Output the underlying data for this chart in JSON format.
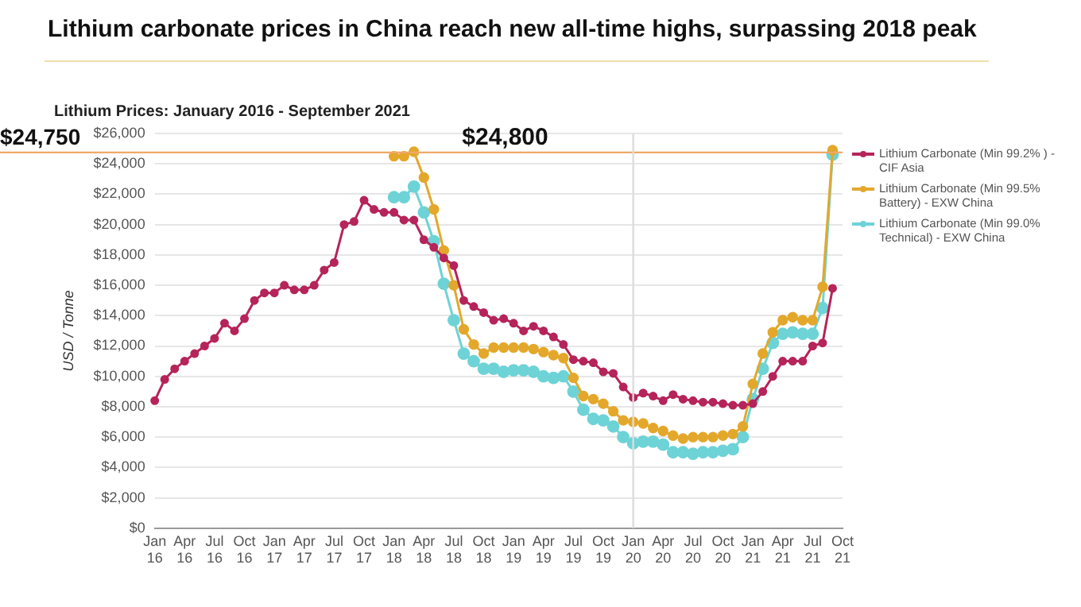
{
  "chart_data": {
    "type": "line",
    "title": "Lithium carbonate prices in China reach new all-time highs, surpassing 2018 peak",
    "subtitle": "Lithium Prices: January 2016 - September 2021",
    "ylabel": "USD / Tonne",
    "categories": [
      "Jan 16",
      null,
      null,
      "Apr 16",
      null,
      null,
      "Jul 16",
      null,
      null,
      "Oct 16",
      null,
      null,
      "Jan 17",
      null,
      null,
      "Apr 17",
      null,
      null,
      "Jul 17",
      null,
      null,
      "Oct 17",
      null,
      null,
      "Jan 18",
      null,
      null,
      "Apr 18",
      null,
      null,
      "Jul 18",
      null,
      null,
      "Oct 18",
      null,
      null,
      "Jan 19",
      null,
      null,
      "Apr 19",
      null,
      null,
      "Jul 19",
      null,
      null,
      "Oct 19",
      null,
      null,
      "Jan 20",
      null,
      null,
      "Apr 20",
      null,
      null,
      "Jul 20",
      null,
      null,
      "Oct 20",
      null,
      null,
      "Jan 21",
      null,
      null,
      "Apr 21",
      null,
      null,
      "Jul 21",
      null,
      null,
      "Oct 21"
    ],
    "series": [
      {
        "name": "Lithium Carbonate (Min 99.2% ) - CIF Asia",
        "color": "#b5245a",
        "values": [
          8400,
          9800,
          10500,
          11000,
          11500,
          12000,
          12500,
          13500,
          13000,
          13800,
          15000,
          15500,
          15500,
          16000,
          15700,
          15700,
          16000,
          17000,
          17500,
          20000,
          20200,
          21600,
          21000,
          20800,
          20800,
          20300,
          20300,
          19000,
          18500,
          17800,
          17300,
          15000,
          14600,
          14200,
          13700,
          13800,
          13500,
          13000,
          13300,
          13000,
          12600,
          12100,
          11100,
          11000,
          10900,
          10300,
          10200,
          9300,
          8600,
          8900,
          8700,
          8400,
          8800,
          8500,
          8400,
          8300,
          8300,
          8200,
          8100,
          8100,
          8200,
          9000,
          10000,
          11000,
          11000,
          11000,
          12000,
          12200,
          15800,
          null
        ]
      },
      {
        "name": "Lithium Carbonate (Min 99.5% Battery) - EXW China",
        "color": "#e3a82b",
        "values": [
          null,
          null,
          null,
          null,
          null,
          null,
          null,
          null,
          null,
          null,
          null,
          null,
          null,
          null,
          null,
          null,
          null,
          null,
          null,
          null,
          null,
          null,
          null,
          null,
          24500,
          24500,
          24800,
          23100,
          21000,
          18300,
          16000,
          13100,
          12100,
          11500,
          11900,
          11900,
          11900,
          11900,
          11800,
          11600,
          11400,
          11200,
          9900,
          8700,
          8500,
          8200,
          7700,
          7100,
          7000,
          6900,
          6600,
          6400,
          6100,
          5900,
          6000,
          6000,
          6000,
          6100,
          6200,
          6700,
          9500,
          11500,
          12900,
          13700,
          13900,
          13700,
          13700,
          15900,
          24900,
          null
        ]
      },
      {
        "name": "Lithium Carbonate (Min 99.0% Technical) - EXW China",
        "color": "#6dd3d6",
        "values": [
          null,
          null,
          null,
          null,
          null,
          null,
          null,
          null,
          null,
          null,
          null,
          null,
          null,
          null,
          null,
          null,
          null,
          null,
          null,
          null,
          null,
          null,
          null,
          null,
          21800,
          21800,
          22500,
          20800,
          18900,
          16100,
          13700,
          11500,
          11000,
          10500,
          10500,
          10300,
          10400,
          10400,
          10300,
          10000,
          9900,
          10000,
          9000,
          7800,
          7200,
          7100,
          6700,
          6000,
          5600,
          5700,
          5700,
          5500,
          5000,
          5000,
          4900,
          5000,
          5000,
          5100,
          5200,
          6000,
          8500,
          10500,
          12200,
          12800,
          12900,
          12800,
          12800,
          14500,
          24600,
          null
        ]
      }
    ],
    "ylim": [
      0,
      26000
    ],
    "yticks": [
      {
        "value": 0,
        "label": "$0"
      },
      {
        "value": 2000,
        "label": "$2,000"
      },
      {
        "value": 4000,
        "label": "$4,000"
      },
      {
        "value": 6000,
        "label": "$6,000"
      },
      {
        "value": 8000,
        "label": "$8,000"
      },
      {
        "value": 10000,
        "label": "$10,000"
      },
      {
        "value": 12000,
        "label": "$12,000"
      },
      {
        "value": 14000,
        "label": "$14,000"
      },
      {
        "value": 16000,
        "label": "$16,000"
      },
      {
        "value": 18000,
        "label": "$18,000"
      },
      {
        "value": 20000,
        "label": "$20,000"
      },
      {
        "value": 22000,
        "label": "$22,000"
      },
      {
        "value": 24000,
        "label": "$24,000"
      },
      {
        "value": 26000,
        "label": "$26,000"
      }
    ],
    "ref_lines": [
      {
        "axis": "y",
        "value": 24750,
        "label": "$24,750",
        "color": "#f0a868"
      },
      {
        "axis": "x",
        "value": "Jan 20",
        "color": "#dddddd"
      }
    ],
    "annotations": [
      {
        "text": "$24,800",
        "x": "Apr 18",
        "y": 24800
      }
    ],
    "grid": "y",
    "legend": "right",
    "marker": "circle",
    "line_style": "solid"
  }
}
